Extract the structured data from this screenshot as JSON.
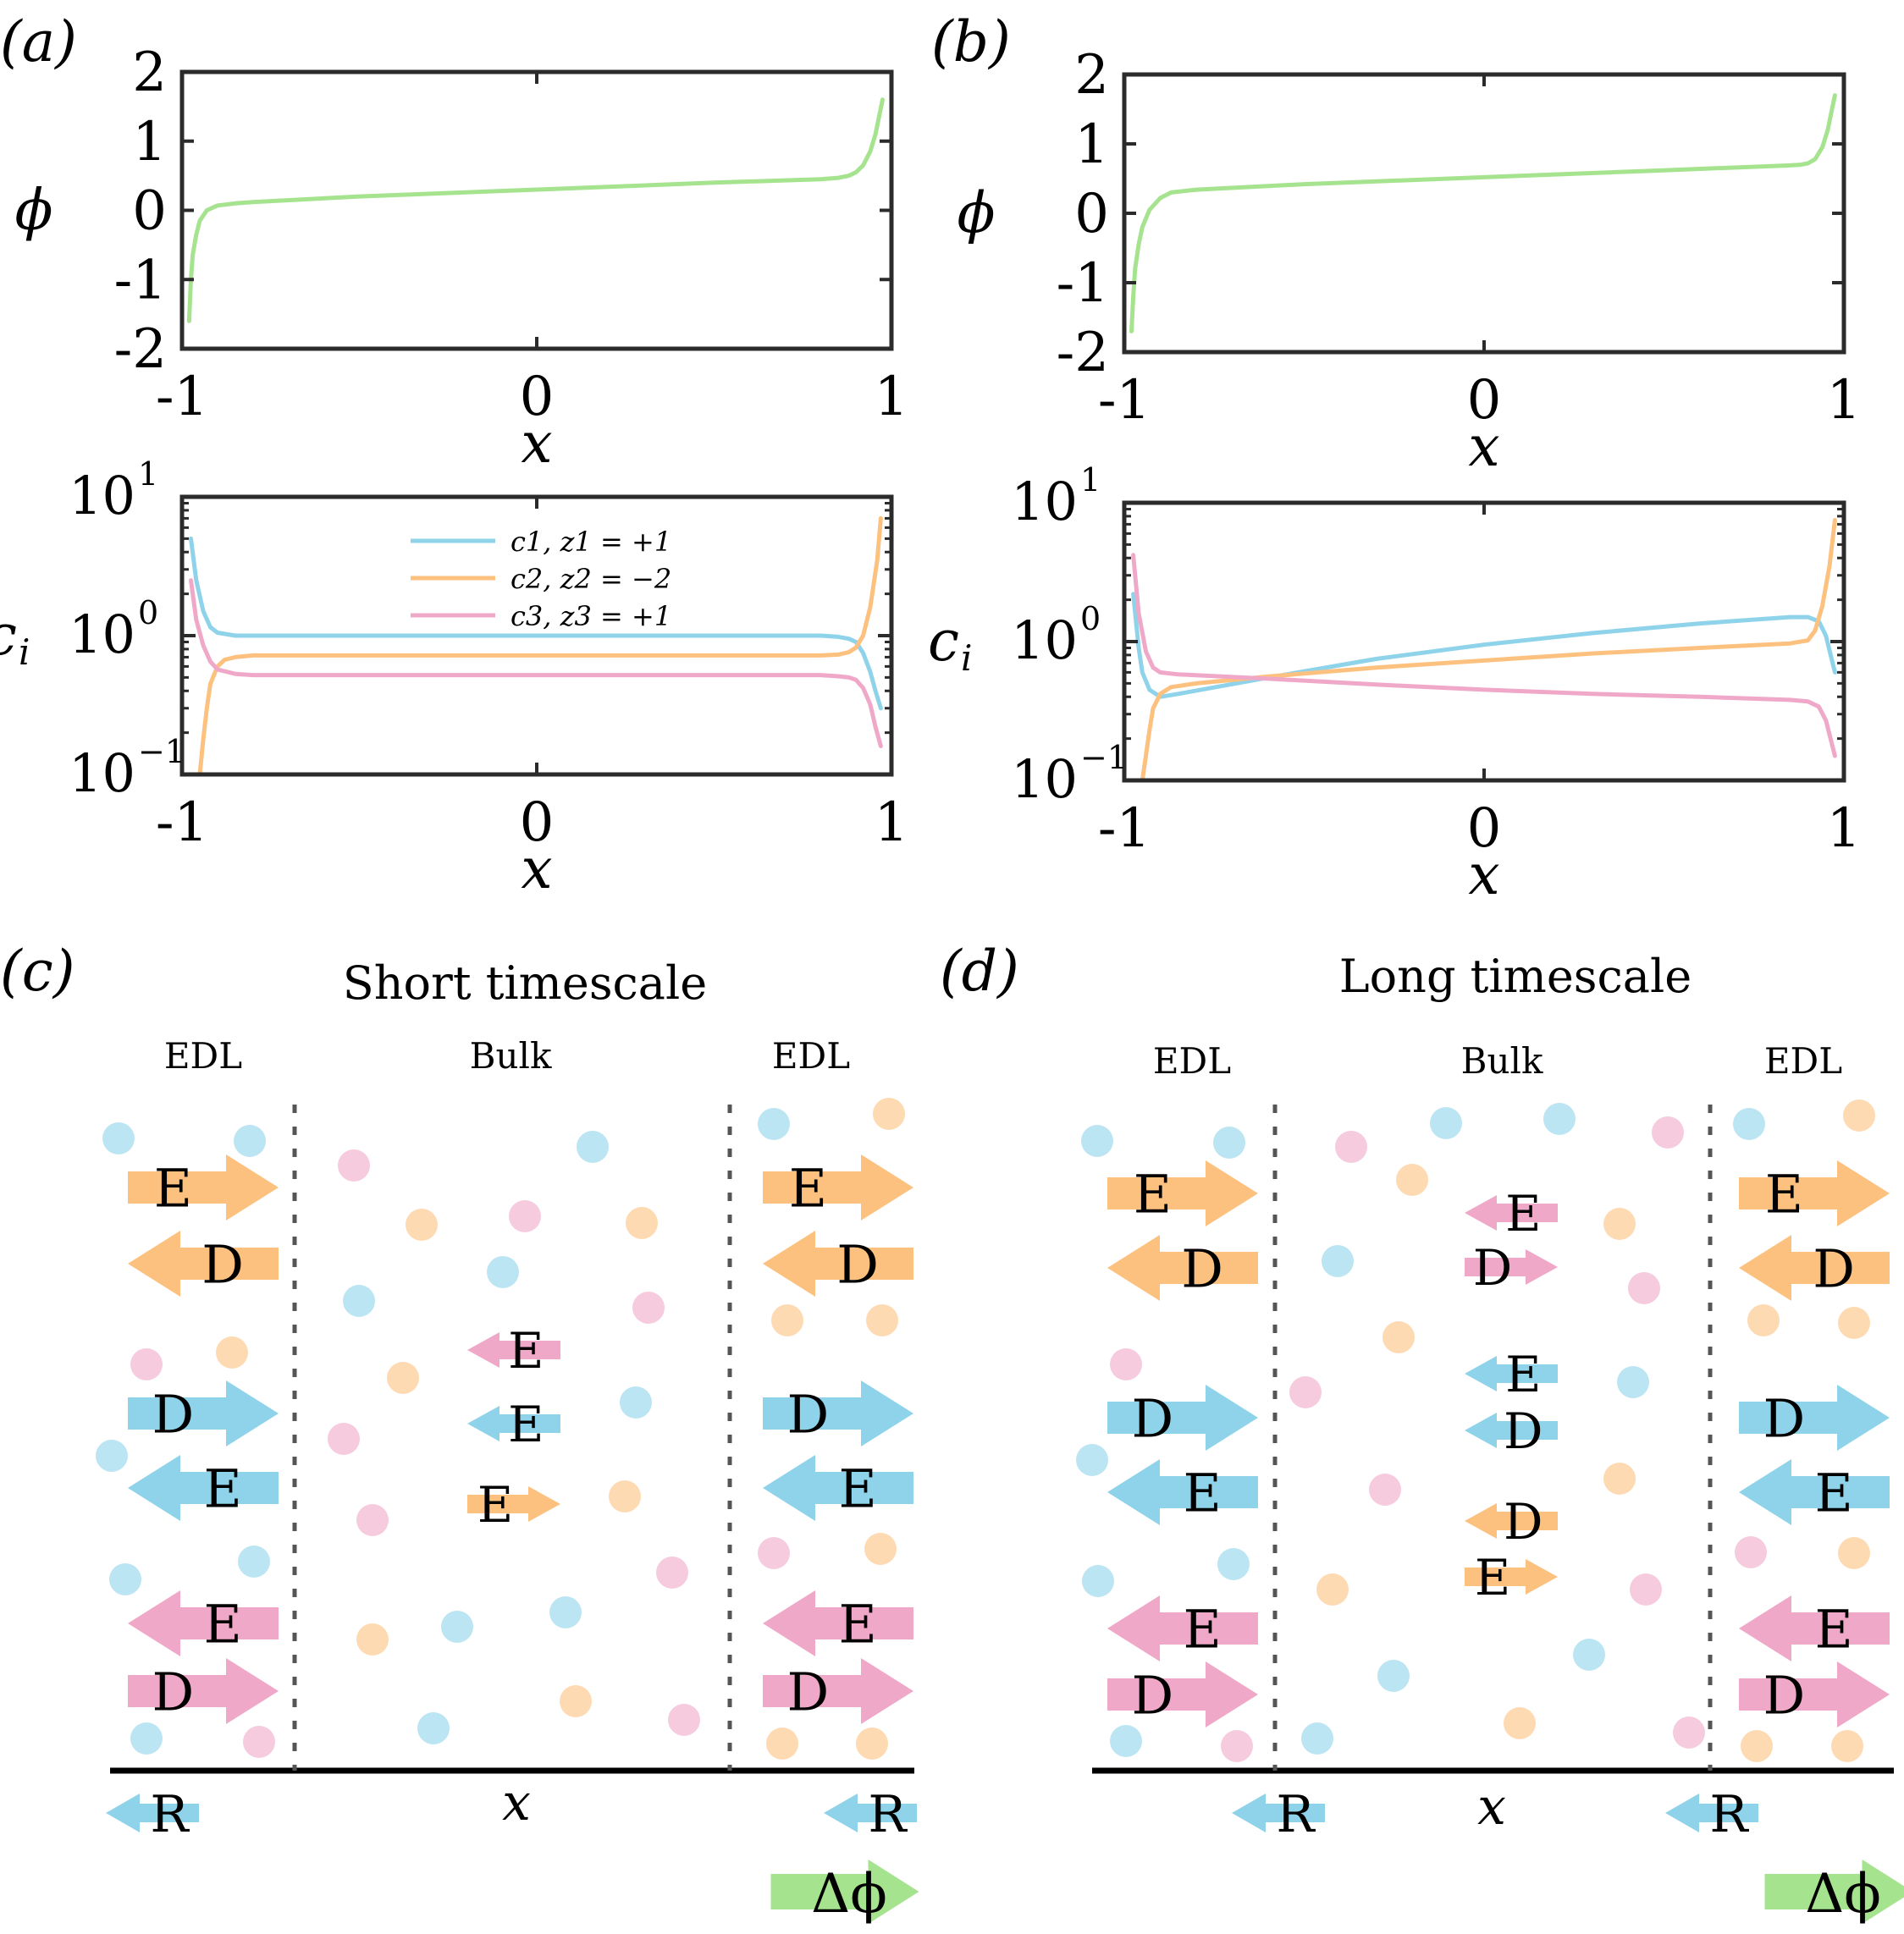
{
  "colors": {
    "blue": "#8ed3ea",
    "orange": "#fdc17f",
    "pink": "#f0a8c8",
    "green": "#a6e38f",
    "axis": "#2b2b2b"
  },
  "panels": {
    "a": "(a)",
    "b": "(b)",
    "c": "(c)",
    "d": "(d)"
  },
  "chart_data": [
    {
      "id": "a-phi",
      "type": "line",
      "panel_label": "(a)",
      "ylabel": "ϕ",
      "xlabel": "x",
      "xlim": [
        -1,
        1
      ],
      "ylim": [
        -2,
        2
      ],
      "x_ticks": [
        "-1",
        "0",
        "1"
      ],
      "y_ticks": [
        "2",
        "1",
        "0",
        "-1",
        "-2"
      ],
      "series": [
        {
          "name": "phi",
          "x": [
            -0.98,
            -0.975,
            -0.97,
            -0.96,
            -0.95,
            -0.93,
            -0.9,
            -0.85,
            -0.8,
            -0.5,
            0,
            0.5,
            0.8,
            0.85,
            0.88,
            0.9,
            0.92,
            0.94,
            0.955,
            0.965,
            0.975
          ],
          "y": [
            -1.6,
            -1.0,
            -0.65,
            -0.35,
            -0.15,
            0.0,
            0.07,
            0.1,
            0.12,
            0.2,
            0.3,
            0.4,
            0.45,
            0.47,
            0.5,
            0.55,
            0.65,
            0.85,
            1.1,
            1.35,
            1.6
          ]
        }
      ]
    },
    {
      "id": "a-c",
      "type": "line",
      "panel_label": "",
      "ylabel": "c",
      "ylabel_sub": "i",
      "xlabel": "x",
      "xlim": [
        -1,
        1
      ],
      "ylog": true,
      "ylim": [
        0.1,
        10
      ],
      "x_ticks": [
        "-1",
        "0",
        "1"
      ],
      "y_ticks": [
        {
          "base": "10",
          "exp": "1"
        },
        {
          "base": "10",
          "exp": "0"
        },
        {
          "base": "10",
          "exp": "−1"
        }
      ],
      "legend": [
        {
          "label": "c1, z1 = +1",
          "color_key": "blue"
        },
        {
          "label": "c2, z2 = −2",
          "color_key": "orange"
        },
        {
          "label": "c3, z3 = +1",
          "color_key": "pink"
        }
      ],
      "legend_position": "top-center",
      "series": [
        {
          "name": "c1, z1 = +1",
          "color_key": "blue",
          "x": [
            -0.975,
            -0.96,
            -0.94,
            -0.92,
            -0.9,
            -0.85,
            -0.8,
            0,
            0.8,
            0.85,
            0.88,
            0.9,
            0.92,
            0.94,
            0.955,
            0.97
          ],
          "y": [
            5.0,
            2.5,
            1.5,
            1.15,
            1.05,
            1.0,
            1.0,
            1.0,
            1.0,
            0.98,
            0.95,
            0.9,
            0.75,
            0.55,
            0.4,
            0.3
          ]
        },
        {
          "name": "c2, z2 = −2",
          "color_key": "orange",
          "x": [
            -0.95,
            -0.94,
            -0.93,
            -0.92,
            -0.9,
            -0.88,
            -0.85,
            -0.8,
            0,
            0.8,
            0.85,
            0.88,
            0.9,
            0.92,
            0.94,
            0.96,
            0.97
          ],
          "y": [
            0.1,
            0.18,
            0.3,
            0.45,
            0.6,
            0.67,
            0.7,
            0.72,
            0.72,
            0.72,
            0.73,
            0.76,
            0.82,
            1.0,
            1.6,
            3.5,
            7.0
          ]
        },
        {
          "name": "c3, z3 = +1",
          "color_key": "pink",
          "x": [
            -0.975,
            -0.96,
            -0.94,
            -0.92,
            -0.9,
            -0.85,
            -0.8,
            0,
            0.8,
            0.85,
            0.88,
            0.9,
            0.92,
            0.94,
            0.955,
            0.97
          ],
          "y": [
            2.5,
            1.3,
            0.85,
            0.65,
            0.57,
            0.53,
            0.52,
            0.52,
            0.52,
            0.51,
            0.5,
            0.48,
            0.42,
            0.32,
            0.22,
            0.16
          ]
        }
      ]
    },
    {
      "id": "b-phi",
      "type": "line",
      "panel_label": "(b)",
      "ylabel": "ϕ",
      "xlabel": "x",
      "xlim": [
        -1,
        1
      ],
      "ylim": [
        -2,
        2
      ],
      "x_ticks": [
        "-1",
        "0",
        "1"
      ],
      "y_ticks": [
        "2",
        "1",
        "0",
        "-1",
        "-2"
      ],
      "series": [
        {
          "name": "phi",
          "x": [
            -0.98,
            -0.975,
            -0.97,
            -0.96,
            -0.95,
            -0.93,
            -0.9,
            -0.87,
            -0.8,
            -0.5,
            0,
            0.5,
            0.8,
            0.85,
            0.88,
            0.9,
            0.92,
            0.94,
            0.955,
            0.965,
            0.975
          ],
          "y": [
            -1.7,
            -1.2,
            -0.8,
            -0.45,
            -0.2,
            0.05,
            0.22,
            0.3,
            0.34,
            0.42,
            0.52,
            0.62,
            0.68,
            0.69,
            0.7,
            0.72,
            0.78,
            0.95,
            1.2,
            1.45,
            1.7
          ]
        }
      ]
    },
    {
      "id": "b-c",
      "type": "line",
      "panel_label": "",
      "ylabel": "c",
      "ylabel_sub": "i",
      "xlabel": "x",
      "xlim": [
        -1,
        1
      ],
      "ylog": true,
      "ylim": [
        0.1,
        10
      ],
      "x_ticks": [
        "-1",
        "0",
        "1"
      ],
      "y_ticks": [
        {
          "base": "10",
          "exp": "1"
        },
        {
          "base": "10",
          "exp": "0"
        },
        {
          "base": "10",
          "exp": "−1"
        }
      ],
      "series": [
        {
          "name": "c1",
          "color_key": "blue",
          "x": [
            -0.975,
            -0.96,
            -0.95,
            -0.93,
            -0.9,
            -0.85,
            -0.6,
            -0.3,
            0,
            0.3,
            0.6,
            0.85,
            0.9,
            0.93,
            0.95,
            0.975
          ],
          "y": [
            2.2,
            0.9,
            0.6,
            0.45,
            0.4,
            0.42,
            0.55,
            0.75,
            0.95,
            1.15,
            1.35,
            1.5,
            1.5,
            1.4,
            1.1,
            0.6
          ]
        },
        {
          "name": "c2",
          "color_key": "orange",
          "x": [
            -0.95,
            -0.94,
            -0.93,
            -0.92,
            -0.9,
            -0.87,
            -0.8,
            -0.6,
            -0.3,
            0,
            0.3,
            0.6,
            0.85,
            0.9,
            0.92,
            0.94,
            0.96,
            0.975
          ],
          "y": [
            0.1,
            0.15,
            0.23,
            0.33,
            0.42,
            0.47,
            0.5,
            0.56,
            0.65,
            0.73,
            0.82,
            0.9,
            0.97,
            1.02,
            1.2,
            1.8,
            3.5,
            7.5
          ]
        },
        {
          "name": "c3",
          "color_key": "pink",
          "x": [
            -0.975,
            -0.96,
            -0.94,
            -0.92,
            -0.9,
            -0.85,
            -0.6,
            -0.3,
            0,
            0.3,
            0.6,
            0.85,
            0.9,
            0.93,
            0.95,
            0.975
          ],
          "y": [
            4.2,
            1.6,
            0.85,
            0.65,
            0.6,
            0.58,
            0.54,
            0.49,
            0.45,
            0.42,
            0.4,
            0.38,
            0.37,
            0.34,
            0.27,
            0.15
          ]
        }
      ]
    }
  ],
  "schematic": {
    "c": {
      "title": "Short timescale",
      "left_region": "EDL",
      "middle_region": "Bulk",
      "right_region": "EDL",
      "axis_label": "x",
      "left_reaction": "R",
      "right_reaction": "R",
      "applied": "Δϕ",
      "edl_arrows": [
        {
          "side": "left",
          "label": "E",
          "dir": "right",
          "color_key": "orange"
        },
        {
          "side": "left",
          "label": "D",
          "dir": "left",
          "color_key": "orange"
        },
        {
          "side": "left",
          "label": "D",
          "dir": "right",
          "color_key": "blue"
        },
        {
          "side": "left",
          "label": "E",
          "dir": "left",
          "color_key": "blue"
        },
        {
          "side": "left",
          "label": "E",
          "dir": "left",
          "color_key": "pink"
        },
        {
          "side": "left",
          "label": "D",
          "dir": "right",
          "color_key": "pink"
        },
        {
          "side": "right",
          "label": "E",
          "dir": "right",
          "color_key": "orange"
        },
        {
          "side": "right",
          "label": "D",
          "dir": "left",
          "color_key": "orange"
        },
        {
          "side": "right",
          "label": "D",
          "dir": "right",
          "color_key": "blue"
        },
        {
          "side": "right",
          "label": "E",
          "dir": "left",
          "color_key": "blue"
        },
        {
          "side": "right",
          "label": "E",
          "dir": "left",
          "color_key": "pink"
        },
        {
          "side": "right",
          "label": "D",
          "dir": "right",
          "color_key": "pink"
        }
      ],
      "bulk_arrows": [
        {
          "label": "E",
          "dir": "left",
          "color_key": "pink"
        },
        {
          "label": "E",
          "dir": "left",
          "color_key": "blue"
        },
        {
          "label": "E",
          "dir": "right",
          "color_key": "orange"
        }
      ]
    },
    "d": {
      "title": "Long timescale",
      "left_region": "EDL",
      "middle_region": "Bulk",
      "right_region": "EDL",
      "axis_label": "x",
      "left_reaction": "R",
      "right_reaction": "R",
      "applied": "Δϕ",
      "edl_arrows": [
        {
          "side": "left",
          "label": "E",
          "dir": "right",
          "color_key": "orange"
        },
        {
          "side": "left",
          "label": "D",
          "dir": "left",
          "color_key": "orange"
        },
        {
          "side": "left",
          "label": "D",
          "dir": "right",
          "color_key": "blue"
        },
        {
          "side": "left",
          "label": "E",
          "dir": "left",
          "color_key": "blue"
        },
        {
          "side": "left",
          "label": "E",
          "dir": "left",
          "color_key": "pink"
        },
        {
          "side": "left",
          "label": "D",
          "dir": "right",
          "color_key": "pink"
        },
        {
          "side": "right",
          "label": "E",
          "dir": "right",
          "color_key": "orange"
        },
        {
          "side": "right",
          "label": "D",
          "dir": "left",
          "color_key": "orange"
        },
        {
          "side": "right",
          "label": "D",
          "dir": "right",
          "color_key": "blue"
        },
        {
          "side": "right",
          "label": "E",
          "dir": "left",
          "color_key": "blue"
        },
        {
          "side": "right",
          "label": "E",
          "dir": "left",
          "color_key": "pink"
        },
        {
          "side": "right",
          "label": "D",
          "dir": "right",
          "color_key": "pink"
        }
      ],
      "bulk_arrows": [
        {
          "label": "E",
          "dir": "left",
          "color_key": "pink"
        },
        {
          "label": "D",
          "dir": "right",
          "color_key": "pink"
        },
        {
          "label": "E",
          "dir": "left",
          "color_key": "blue"
        },
        {
          "label": "D",
          "dir": "left",
          "color_key": "blue"
        },
        {
          "label": "D",
          "dir": "left",
          "color_key": "orange"
        },
        {
          "label": "E",
          "dir": "right",
          "color_key": "orange"
        }
      ]
    }
  }
}
